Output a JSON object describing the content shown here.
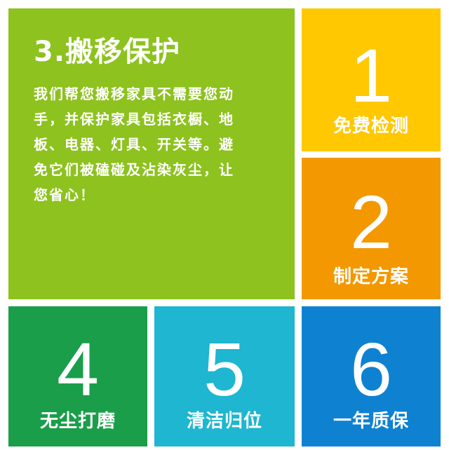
{
  "main": {
    "heading": "3.搬移保护",
    "body_lines": [
      "我们帮您搬移家具不需要您动",
      "手，并保护家具包括衣橱、地",
      "板、电器、灯具、开关等。避",
      "免它们被磕碰及沾染灰尘，让",
      "您省心！"
    ]
  },
  "steps": [
    {
      "number": "1",
      "label": "免费检测"
    },
    {
      "number": "2",
      "label": "制定方案"
    },
    {
      "number": "4",
      "label": "无尘打磨"
    },
    {
      "number": "5",
      "label": "清洁归位"
    },
    {
      "number": "6",
      "label": "一年质保"
    }
  ],
  "colors": {
    "main": "#8dc21f",
    "step1": "#ffc800",
    "step2": "#f39800",
    "step4": "#1a9e4a",
    "step5": "#1eb6d0",
    "step6": "#0e82d0"
  }
}
